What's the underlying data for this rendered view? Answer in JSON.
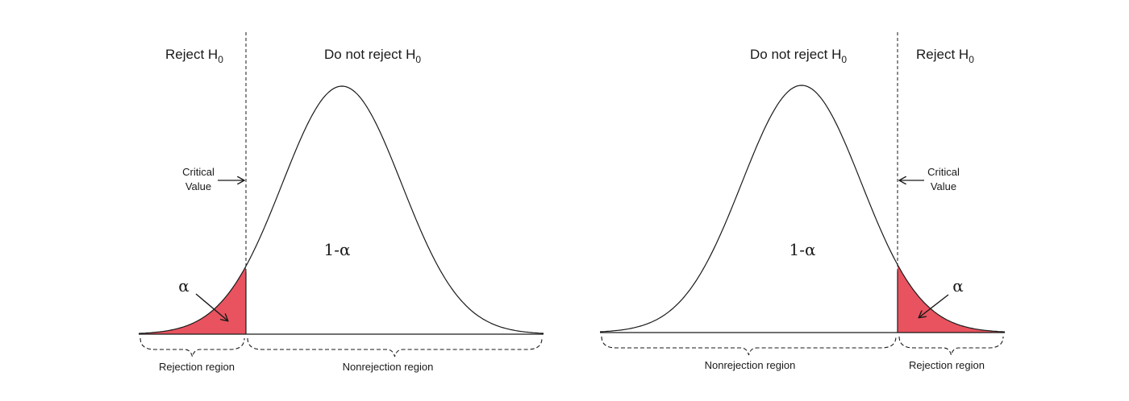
{
  "colors": {
    "rejection_fill": "#e8535f",
    "curve": "#1a1a1a",
    "background": "#ffffff"
  },
  "panels": [
    {
      "tail": "left",
      "reject_label": "Reject H",
      "reject_sub": "0",
      "nonreject_label": "Do not reject H",
      "nonreject_sub": "0",
      "critical_line1": "Critical",
      "critical_line2": "Value",
      "center_label": "1-α",
      "alpha_label": "α",
      "rejection_region_label": "Rejection region",
      "nonrejection_region_label": "Nonrejection region"
    },
    {
      "tail": "right",
      "reject_label": "Reject H",
      "reject_sub": "0",
      "nonreject_label": "Do not reject H",
      "nonreject_sub": "0",
      "critical_line1": "Critical",
      "critical_line2": "Value",
      "center_label": "1-α",
      "alpha_label": "α",
      "rejection_region_label": "Rejection region",
      "nonrejection_region_label": "Nonrejection region"
    }
  ]
}
